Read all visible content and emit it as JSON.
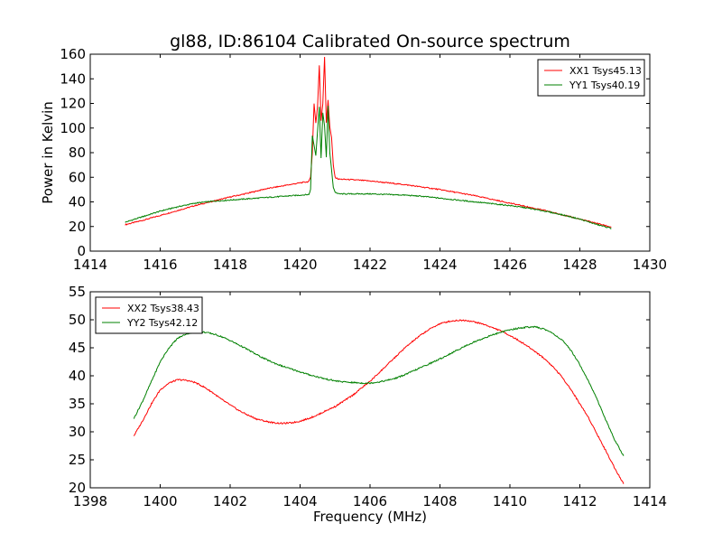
{
  "figure_title": "gl88, ID:86104 Calibrated On-source spectrum",
  "chart_data": [
    {
      "type": "line",
      "title": "gl88, ID:86104 Calibrated On-source spectrum",
      "xlabel": "",
      "ylabel": "Power in Kelvin",
      "xlim": [
        1414,
        1430
      ],
      "ylim": [
        0,
        160
      ],
      "xticks": [
        1414,
        1416,
        1418,
        1420,
        1422,
        1424,
        1426,
        1428,
        1430
      ],
      "yticks": [
        0,
        20,
        40,
        60,
        80,
        100,
        120,
        140,
        160
      ],
      "legend_position": "top-right",
      "series": [
        {
          "name": "XX1 Tsys45.13",
          "color": "#ff0000",
          "points": [
            [
              1415.0,
              21.5
            ],
            [
              1415.5,
              25
            ],
            [
              1416,
              29
            ],
            [
              1416.5,
              33
            ],
            [
              1417,
              37
            ],
            [
              1417.5,
              40.5
            ],
            [
              1418,
              44
            ],
            [
              1418.5,
              47
            ],
            [
              1419,
              50.5
            ],
            [
              1419.5,
              53
            ],
            [
              1420,
              55.5
            ],
            [
              1420.25,
              56.5
            ],
            [
              1420.3,
              60
            ],
            [
              1420.35,
              80
            ],
            [
              1420.4,
              120
            ],
            [
              1420.45,
              104
            ],
            [
              1420.5,
              118
            ],
            [
              1420.55,
              151
            ],
            [
              1420.6,
              106
            ],
            [
              1420.65,
              120
            ],
            [
              1420.7,
              158
            ],
            [
              1420.75,
              104
            ],
            [
              1420.8,
              123
            ],
            [
              1420.85,
              101
            ],
            [
              1420.9,
              92
            ],
            [
              1420.95,
              70
            ],
            [
              1421.0,
              60
            ],
            [
              1421.1,
              58.5
            ],
            [
              1421.5,
              58
            ],
            [
              1422,
              57
            ],
            [
              1422.5,
              55.5
            ],
            [
              1423,
              54
            ],
            [
              1423.5,
              52
            ],
            [
              1424,
              50
            ],
            [
              1424.5,
              47.5
            ],
            [
              1425,
              45
            ],
            [
              1425.5,
              42
            ],
            [
              1426,
              39
            ],
            [
              1426.5,
              36
            ],
            [
              1427,
              33
            ],
            [
              1427.5,
              29.5
            ],
            [
              1428,
              26
            ],
            [
              1428.5,
              22.5
            ],
            [
              1428.9,
              19.5
            ]
          ]
        },
        {
          "name": "YY1 Tsys40.19",
          "color": "#008000",
          "points": [
            [
              1415.0,
              23.5
            ],
            [
              1415.5,
              28
            ],
            [
              1416,
              32.5
            ],
            [
              1416.5,
              36
            ],
            [
              1417,
              39
            ],
            [
              1417.5,
              40.5
            ],
            [
              1418,
              41.5
            ],
            [
              1418.5,
              42.5
            ],
            [
              1419,
              43.5
            ],
            [
              1419.5,
              44.5
            ],
            [
              1420,
              45.5
            ],
            [
              1420.25,
              46
            ],
            [
              1420.3,
              50
            ],
            [
              1420.35,
              94
            ],
            [
              1420.4,
              86
            ],
            [
              1420.45,
              78
            ],
            [
              1420.5,
              98
            ],
            [
              1420.55,
              117
            ],
            [
              1420.6,
              76
            ],
            [
              1420.65,
              112
            ],
            [
              1420.7,
              102
            ],
            [
              1420.75,
              76
            ],
            [
              1420.8,
              118
            ],
            [
              1420.85,
              80
            ],
            [
              1420.9,
              66
            ],
            [
              1420.95,
              52
            ],
            [
              1421.0,
              48
            ],
            [
              1421.1,
              46.5
            ],
            [
              1421.5,
              46.5
            ],
            [
              1422,
              46.5
            ],
            [
              1422.5,
              46
            ],
            [
              1423,
              45.5
            ],
            [
              1423.5,
              44.5
            ],
            [
              1424,
              43
            ],
            [
              1424.5,
              41.5
            ],
            [
              1425,
              40
            ],
            [
              1425.5,
              38.5
            ],
            [
              1426,
              37
            ],
            [
              1426.5,
              35
            ],
            [
              1427,
              32.5
            ],
            [
              1427.5,
              29.5
            ],
            [
              1428,
              26
            ],
            [
              1428.5,
              21.5
            ],
            [
              1428.9,
              18.5
            ]
          ]
        }
      ]
    },
    {
      "type": "line",
      "title": "",
      "xlabel": "Frequency (MHz)",
      "ylabel": "",
      "xlim": [
        1398,
        1414
      ],
      "ylim": [
        20,
        55
      ],
      "xticks": [
        1398,
        1400,
        1402,
        1404,
        1406,
        1408,
        1410,
        1412,
        1414
      ],
      "yticks": [
        20,
        25,
        30,
        35,
        40,
        45,
        50,
        55
      ],
      "legend_position": "top-left",
      "series": [
        {
          "name": "XX2 Tsys38.43",
          "color": "#ff0000",
          "points": [
            [
              1399.25,
              29.3
            ],
            [
              1399.5,
              32
            ],
            [
              1399.75,
              35
            ],
            [
              1400,
              37.5
            ],
            [
              1400.25,
              38.7
            ],
            [
              1400.5,
              39.3
            ],
            [
              1400.75,
              39.2
            ],
            [
              1401,
              38.8
            ],
            [
              1401.25,
              38
            ],
            [
              1401.5,
              37
            ],
            [
              1401.75,
              35.8
            ],
            [
              1402,
              34.8
            ],
            [
              1402.25,
              33.8
            ],
            [
              1402.5,
              33
            ],
            [
              1402.75,
              32.3
            ],
            [
              1403,
              31.9
            ],
            [
              1403.25,
              31.6
            ],
            [
              1403.5,
              31.5
            ],
            [
              1403.75,
              31.6
            ],
            [
              1404,
              31.9
            ],
            [
              1404.25,
              32.4
            ],
            [
              1404.5,
              33
            ],
            [
              1404.75,
              33.8
            ],
            [
              1405,
              34.5
            ],
            [
              1405.25,
              35.5
            ],
            [
              1405.5,
              36.5
            ],
            [
              1405.75,
              37.8
            ],
            [
              1406,
              39
            ],
            [
              1406.25,
              40.5
            ],
            [
              1406.5,
              42
            ],
            [
              1406.75,
              43.5
            ],
            [
              1407,
              45
            ],
            [
              1407.25,
              46.3
            ],
            [
              1407.5,
              47.5
            ],
            [
              1407.75,
              48.5
            ],
            [
              1408,
              49.3
            ],
            [
              1408.25,
              49.7
            ],
            [
              1408.5,
              49.9
            ],
            [
              1408.75,
              49.9
            ],
            [
              1409,
              49.6
            ],
            [
              1409.25,
              49.2
            ],
            [
              1409.5,
              48.6
            ],
            [
              1409.75,
              48
            ],
            [
              1410,
              47.2
            ],
            [
              1410.25,
              46.3
            ],
            [
              1410.5,
              45.3
            ],
            [
              1410.75,
              44.2
            ],
            [
              1411,
              43
            ],
            [
              1411.25,
              41.5
            ],
            [
              1411.5,
              39.7
            ],
            [
              1411.75,
              37.5
            ],
            [
              1412,
              35
            ],
            [
              1412.25,
              32.5
            ],
            [
              1412.5,
              29.5
            ],
            [
              1412.75,
              26.5
            ],
            [
              1413,
              23.5
            ],
            [
              1413.25,
              20.7
            ]
          ]
        },
        {
          "name": "YY2 Tsys42.12",
          "color": "#008000",
          "points": [
            [
              1399.25,
              32.4
            ],
            [
              1399.5,
              35.5
            ],
            [
              1399.75,
              39
            ],
            [
              1400,
              42.5
            ],
            [
              1400.25,
              45
            ],
            [
              1400.5,
              46.7
            ],
            [
              1400.75,
              47.5
            ],
            [
              1401,
              47.8
            ],
            [
              1401.25,
              47.8
            ],
            [
              1401.5,
              47.5
            ],
            [
              1401.75,
              47
            ],
            [
              1402,
              46.3
            ],
            [
              1402.25,
              45.5
            ],
            [
              1402.5,
              44.7
            ],
            [
              1402.75,
              43.8
            ],
            [
              1403,
              43
            ],
            [
              1403.25,
              42.3
            ],
            [
              1403.5,
              41.7
            ],
            [
              1403.75,
              41.2
            ],
            [
              1404,
              40.7
            ],
            [
              1404.25,
              40.2
            ],
            [
              1404.5,
              39.8
            ],
            [
              1404.75,
              39.4
            ],
            [
              1405,
              39.1
            ],
            [
              1405.25,
              38.9
            ],
            [
              1405.5,
              38.8
            ],
            [
              1405.75,
              38.7
            ],
            [
              1406,
              38.7
            ],
            [
              1406.25,
              38.9
            ],
            [
              1406.5,
              39.2
            ],
            [
              1406.75,
              39.6
            ],
            [
              1407,
              40.2
            ],
            [
              1407.25,
              40.9
            ],
            [
              1407.5,
              41.6
            ],
            [
              1407.75,
              42.3
            ],
            [
              1408,
              43
            ],
            [
              1408.25,
              43.8
            ],
            [
              1408.5,
              44.6
            ],
            [
              1408.75,
              45.4
            ],
            [
              1409,
              46.1
            ],
            [
              1409.25,
              46.7
            ],
            [
              1409.5,
              47.3
            ],
            [
              1409.75,
              47.8
            ],
            [
              1410,
              48.2
            ],
            [
              1410.25,
              48.5
            ],
            [
              1410.5,
              48.7
            ],
            [
              1410.75,
              48.7
            ],
            [
              1411,
              48.3
            ],
            [
              1411.25,
              47.5
            ],
            [
              1411.5,
              46.3
            ],
            [
              1411.75,
              44.5
            ],
            [
              1412,
              42
            ],
            [
              1412.25,
              39
            ],
            [
              1412.5,
              35.7
            ],
            [
              1412.75,
              32
            ],
            [
              1413,
              28.5
            ],
            [
              1413.25,
              25.7
            ]
          ]
        }
      ]
    }
  ]
}
